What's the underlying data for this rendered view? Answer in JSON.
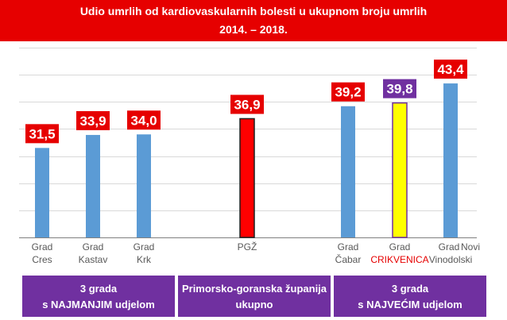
{
  "title": {
    "line1": "Udio umrlih od kardiovaskularnih bolesti u ukupnom broju umrlih",
    "line2": "2014. – 2018."
  },
  "colors": {
    "banner": "#e60000",
    "bar_default": "#5b9bd5",
    "bar_pgz": "#ff0000",
    "bar_crikvenica": "#ffff00",
    "label_red": "#e60000",
    "label_purple": "#7030a0",
    "group_box": "#7030a0"
  },
  "chart_data": {
    "type": "bar",
    "categories": [
      [
        "Grad",
        "Cres"
      ],
      [
        "Grad",
        "Kastav"
      ],
      [
        "Grad",
        "Krk"
      ],
      [
        "PGŽ"
      ],
      [
        "Grad",
        "Čabar"
      ],
      [
        "Grad",
        "CRIKVENICA"
      ],
      [
        "Grad",
        "Novi Vinodolski"
      ]
    ],
    "values": [
      31.5,
      33.9,
      34.0,
      36.9,
      39.2,
      39.8,
      43.4
    ],
    "data_labels": [
      "31,5",
      "33,9",
      "34,0",
      "36,9",
      "39,2",
      "39,8",
      "43,4"
    ],
    "ylim": [
      15,
      50
    ],
    "gridlines": true,
    "xlabel": "",
    "ylabel": ""
  },
  "groups": [
    {
      "line1": "3 grada",
      "line2": "s NAJMANJIM udjelom"
    },
    {
      "line1": "Primorsko-goranska županija",
      "line2": "ukupno"
    },
    {
      "line1": "3 grada",
      "line2": "s NAJVEĆIM udjelom"
    }
  ]
}
